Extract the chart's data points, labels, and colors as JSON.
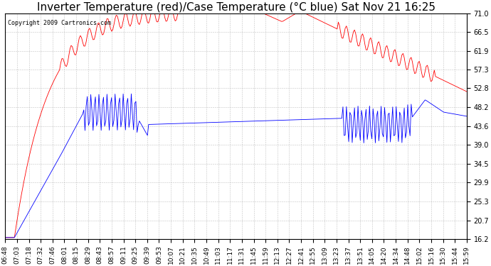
{
  "title": "Inverter Temperature (red)/Case Temperature (°C blue) Sat Nov 21 16:25",
  "copyright": "Copyright 2009 Cartronics.com",
  "y_ticks": [
    16.2,
    20.7,
    25.3,
    29.9,
    34.5,
    39.0,
    43.6,
    48.2,
    52.8,
    57.3,
    61.9,
    66.5,
    71.0
  ],
  "ylim": [
    16.2,
    71.0
  ],
  "x_labels": [
    "06:48",
    "07:03",
    "07:18",
    "07:32",
    "07:46",
    "08:01",
    "08:15",
    "08:29",
    "08:43",
    "08:57",
    "09:11",
    "09:25",
    "09:39",
    "09:53",
    "10:07",
    "10:21",
    "10:35",
    "10:49",
    "11:03",
    "11:17",
    "11:31",
    "11:45",
    "11:59",
    "12:13",
    "12:27",
    "12:41",
    "12:55",
    "13:09",
    "13:23",
    "13:37",
    "13:51",
    "14:05",
    "14:20",
    "14:34",
    "14:48",
    "15:02",
    "15:16",
    "15:30",
    "15:44",
    "15:59"
  ],
  "bg_color": "#ffffff",
  "plot_bg_color": "#ffffff",
  "grid_color": "#aaaaaa",
  "red_color": "#ff0000",
  "blue_color": "#0000ff",
  "title_fontsize": 11,
  "tick_fontsize": 7
}
